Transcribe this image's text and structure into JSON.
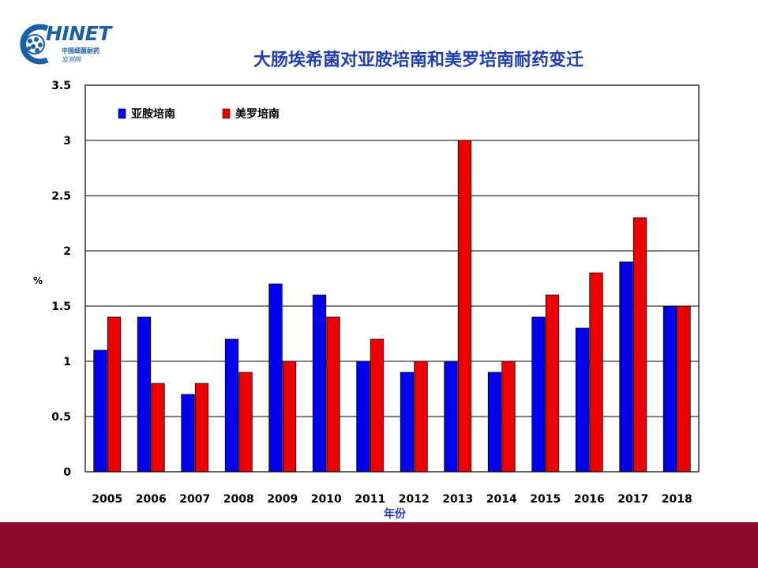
{
  "logo": {
    "text": "HINET",
    "sub1": "中国细菌耐药",
    "sub2": "监测网"
  },
  "colors": {
    "series1": "#0000ee",
    "series2": "#ee0000",
    "title": "#1f3fae",
    "footer": "#8b0a2c"
  },
  "chart_data": {
    "type": "bar",
    "title": "大肠埃希菌对亚胺培南和美罗培南耐药变迁",
    "xlabel": "年份",
    "ylabel": "%",
    "ylim": [
      0,
      3.5
    ],
    "yticks": [
      "0",
      "0.5",
      "1",
      "1.5",
      "2",
      "2.5",
      "3",
      "3.5"
    ],
    "grid": true,
    "legend": "top-left",
    "categories": [
      "2005",
      "2006",
      "2007",
      "2008",
      "2009",
      "2010",
      "2011",
      "2012",
      "2013",
      "2014",
      "2015",
      "2016",
      "2017",
      "2018"
    ],
    "series": [
      {
        "name": "亚胺培南",
        "color": "#0000ee",
        "values": [
          1.1,
          1.4,
          0.7,
          1.2,
          1.7,
          1.6,
          1.0,
          0.9,
          1.0,
          0.9,
          1.4,
          1.3,
          1.9,
          1.5
        ]
      },
      {
        "name": "美罗培南",
        "color": "#ee0000",
        "values": [
          1.4,
          0.8,
          0.8,
          0.9,
          1.0,
          1.4,
          1.2,
          1.0,
          3.0,
          1.0,
          1.6,
          1.8,
          2.3,
          1.5
        ]
      }
    ]
  }
}
